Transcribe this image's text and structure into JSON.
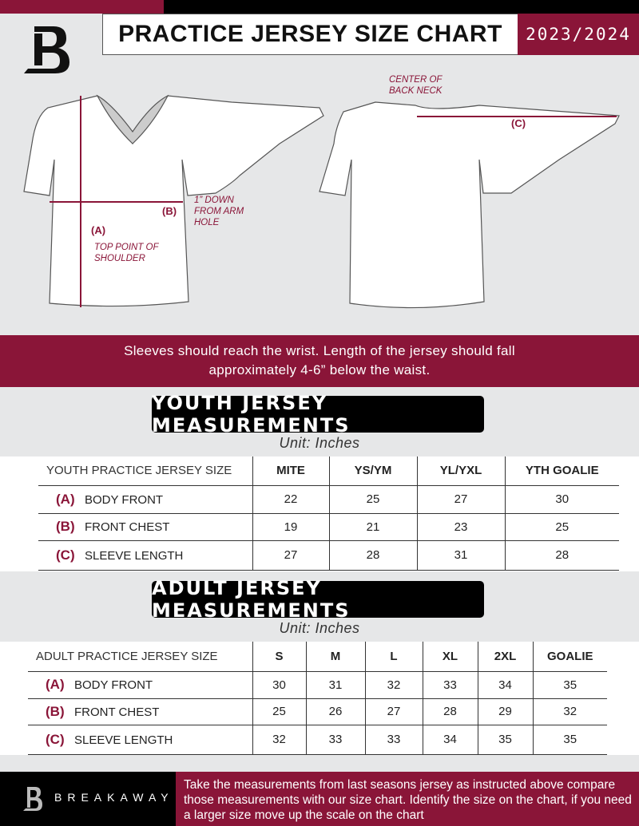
{
  "header": {
    "title": "PRACTICE JERSEY SIZE CHART",
    "season": "2023/2024"
  },
  "diagram": {
    "label_a": "(A)",
    "label_b": "(B)",
    "label_c": "(C)",
    "top_point": "TOP POINT OF SHOULDER",
    "arm_hole": "1” DOWN FROM ARM HOLE",
    "back_neck": "CENTER OF BACK NECK"
  },
  "note": {
    "line1": "Sleeves should reach the wrist. Length of the jersey should fall",
    "line2": "approximately 4-6” below the waist."
  },
  "youth": {
    "title": "YOUTH JERSEY MEASUREMENTS",
    "unit": "Unit: Inches",
    "size_header": "YOUTH PRACTICE JERSEY SIZE",
    "sizes": [
      "MITE",
      "YS/YM",
      "YL/YXL",
      "YTH GOALIE"
    ],
    "rows": [
      {
        "letter": "(A)",
        "label": "BODY FRONT",
        "values": [
          "22",
          "25",
          "27",
          "30"
        ]
      },
      {
        "letter": "(B)",
        "label": "FRONT CHEST",
        "values": [
          "19",
          "21",
          "23",
          "25"
        ]
      },
      {
        "letter": "(C)",
        "label": "SLEEVE LENGTH",
        "values": [
          "27",
          "28",
          "31",
          "28"
        ]
      }
    ]
  },
  "adult": {
    "title": "ADULT JERSEY MEASUREMENTS",
    "unit": "Unit: Inches",
    "size_header": "ADULT PRACTICE JERSEY SIZE",
    "sizes": [
      "S",
      "M",
      "L",
      "XL",
      "2XL",
      "GOALIE"
    ],
    "rows": [
      {
        "letter": "(A)",
        "label": "BODY FRONT",
        "values": [
          "30",
          "31",
          "32",
          "33",
          "34",
          "35"
        ]
      },
      {
        "letter": "(B)",
        "label": "FRONT CHEST",
        "values": [
          "25",
          "26",
          "27",
          "28",
          "29",
          "32"
        ]
      },
      {
        "letter": "(C)",
        "label": "SLEEVE LENGTH",
        "values": [
          "32",
          "33",
          "33",
          "34",
          "35",
          "35"
        ]
      }
    ]
  },
  "footer": {
    "brand": "BREAKAWAY",
    "text": "Take the measurements from last seasons jersey as instructed above compare those measurements  with our size chart. Identify the size on the chart, if you need a larger size move up the scale on the chart"
  },
  "colors": {
    "accent": "#8a1538",
    "background": "#e6e7e8"
  }
}
